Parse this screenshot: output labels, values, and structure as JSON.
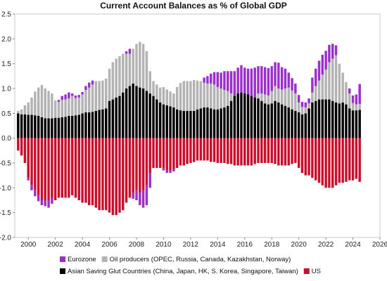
{
  "chart_data": {
    "type": "bar",
    "stacked": true,
    "title": "Current Account Balances as % of Global GDP",
    "xlabel": "",
    "ylabel": "",
    "ylim": [
      -2.0,
      2.5
    ],
    "xlim": [
      1999,
      2026
    ],
    "y_ticks": [
      "2.5",
      "2.0",
      "1.5",
      "1.0",
      "0.5",
      "0.0",
      "-0.5",
      "-1.0",
      "-1.5",
      "-2.0"
    ],
    "x_ticks": [
      "2000",
      "2002",
      "2004",
      "2006",
      "2008",
      "2010",
      "2012",
      "2014",
      "2016",
      "2018",
      "2020",
      "2022",
      "2024",
      "2026"
    ],
    "grid": false,
    "legend_position": "bottom",
    "x": [
      1999.25,
      1999.5,
      1999.75,
      2000.0,
      2000.25,
      2000.5,
      2000.75,
      2001.0,
      2001.25,
      2001.5,
      2001.75,
      2002.0,
      2002.25,
      2002.5,
      2002.75,
      2003.0,
      2003.25,
      2003.5,
      2003.75,
      2004.0,
      2004.25,
      2004.5,
      2004.75,
      2005.0,
      2005.25,
      2005.5,
      2005.75,
      2006.0,
      2006.25,
      2006.5,
      2006.75,
      2007.0,
      2007.25,
      2007.5,
      2007.75,
      2008.0,
      2008.25,
      2008.5,
      2008.75,
      2009.0,
      2009.25,
      2009.5,
      2009.75,
      2010.0,
      2010.25,
      2010.5,
      2010.75,
      2011.0,
      2011.25,
      2011.5,
      2011.75,
      2012.0,
      2012.25,
      2012.5,
      2012.75,
      2013.0,
      2013.25,
      2013.5,
      2013.75,
      2014.0,
      2014.25,
      2014.5,
      2014.75,
      2015.0,
      2015.25,
      2015.5,
      2015.75,
      2016.0,
      2016.25,
      2016.5,
      2016.75,
      2017.0,
      2017.25,
      2017.5,
      2017.75,
      2018.0,
      2018.25,
      2018.5,
      2018.75,
      2019.0,
      2019.25,
      2019.5,
      2019.75,
      2020.0,
      2020.25,
      2020.5,
      2020.75,
      2021.0,
      2021.25,
      2021.5,
      2021.75,
      2022.0,
      2022.25,
      2022.5,
      2022.75,
      2023.0,
      2023.25,
      2023.5,
      2023.75,
      2024.0,
      2024.25,
      2024.5
    ],
    "series": [
      {
        "name": "Asian Saving Glut Countries (China, Japan, HK, S. Korea, Singapore, Taiwan)",
        "color": "#000000",
        "values": [
          0.5,
          0.48,
          0.48,
          0.47,
          0.47,
          0.46,
          0.45,
          0.42,
          0.4,
          0.4,
          0.4,
          0.41,
          0.41,
          0.42,
          0.43,
          0.45,
          0.45,
          0.46,
          0.47,
          0.5,
          0.52,
          0.52,
          0.53,
          0.55,
          0.57,
          0.58,
          0.6,
          0.75,
          0.78,
          0.82,
          0.85,
          0.92,
          1.0,
          1.05,
          1.1,
          1.05,
          1.02,
          1.0,
          0.95,
          0.9,
          0.85,
          0.78,
          0.72,
          0.68,
          0.66,
          0.64,
          0.62,
          0.58,
          0.56,
          0.55,
          0.55,
          0.55,
          0.55,
          0.58,
          0.6,
          0.62,
          0.62,
          0.6,
          0.58,
          0.58,
          0.6,
          0.62,
          0.65,
          0.75,
          0.85,
          0.9,
          0.92,
          0.9,
          0.88,
          0.85,
          0.82,
          0.8,
          0.75,
          0.7,
          0.68,
          0.7,
          0.75,
          0.72,
          0.68,
          0.65,
          0.62,
          0.58,
          0.55,
          0.52,
          0.48,
          0.5,
          0.6,
          0.72,
          0.75,
          0.78,
          0.78,
          0.78,
          0.78,
          0.75,
          0.72,
          0.7,
          0.72,
          0.68,
          0.6,
          0.56,
          0.56,
          0.57
        ]
      },
      {
        "name": "Oil producers (OPEC, Russia, Canada, Kazakhstan, Norway)",
        "color": "#b3b3b3",
        "values": [
          0.05,
          0.1,
          0.18,
          0.25,
          0.35,
          0.48,
          0.57,
          0.65,
          0.6,
          0.55,
          0.5,
          0.35,
          0.32,
          0.35,
          0.35,
          0.35,
          0.4,
          0.35,
          0.35,
          0.38,
          0.45,
          0.5,
          0.55,
          0.6,
          0.58,
          0.58,
          0.6,
          0.65,
          0.75,
          0.78,
          0.8,
          0.78,
          0.7,
          0.65,
          0.7,
          0.85,
          0.92,
          0.9,
          0.8,
          0.45,
          0.3,
          0.3,
          0.3,
          0.35,
          0.32,
          0.3,
          0.28,
          0.45,
          0.55,
          0.6,
          0.6,
          0.6,
          0.62,
          0.58,
          0.55,
          0.5,
          0.48,
          0.5,
          0.5,
          0.45,
          0.4,
          0.35,
          0.3,
          0.15,
          0.0,
          0.0,
          0.0,
          0.0,
          0.0,
          0.0,
          0.0,
          0.1,
          0.15,
          0.18,
          0.18,
          0.25,
          0.3,
          0.28,
          0.3,
          0.35,
          0.4,
          0.38,
          0.35,
          0.2,
          0.15,
          0.12,
          0.1,
          0.2,
          0.3,
          0.38,
          0.5,
          0.6,
          0.75,
          0.85,
          0.95,
          0.8,
          0.6,
          0.45,
          0.3,
          0.15,
          0.12,
          0.12
        ]
      },
      {
        "name": "Eurozone",
        "color": "#9b30c8",
        "values": [
          0.0,
          0.0,
          0.0,
          0.0,
          0.0,
          0.0,
          0.0,
          0.0,
          0.0,
          0.0,
          0.0,
          0.0,
          0.04,
          0.08,
          0.1,
          0.12,
          0.05,
          0.05,
          0.05,
          0.05,
          0.08,
          0.1,
          0.08,
          0.0,
          0.0,
          0.0,
          0.0,
          0.0,
          0.0,
          0.0,
          0.0,
          0.0,
          0.05,
          0.1,
          0.0,
          0.0,
          0.0,
          0.0,
          0.0,
          0.0,
          0.0,
          0.0,
          0.0,
          0.0,
          0.0,
          0.0,
          0.0,
          0.0,
          0.0,
          0.0,
          0.0,
          0.0,
          0.0,
          0.0,
          0.0,
          0.1,
          0.15,
          0.2,
          0.25,
          0.3,
          0.32,
          0.38,
          0.4,
          0.45,
          0.5,
          0.52,
          0.55,
          0.52,
          0.52,
          0.55,
          0.6,
          0.55,
          0.55,
          0.55,
          0.55,
          0.5,
          0.48,
          0.52,
          0.45,
          0.4,
          0.3,
          0.25,
          0.2,
          0.15,
          0.1,
          0.1,
          0.1,
          0.3,
          0.35,
          0.4,
          0.4,
          0.38,
          0.35,
          0.3,
          0.2,
          0.0,
          0.0,
          0.0,
          0.1,
          0.15,
          0.2,
          0.4
        ]
      },
      {
        "name": "US",
        "color": "#c8102e",
        "values": [
          -0.25,
          -0.35,
          -0.5,
          -0.8,
          -0.95,
          -1.05,
          -1.15,
          -1.25,
          -1.25,
          -1.25,
          -1.2,
          -1.25,
          -1.2,
          -1.2,
          -1.2,
          -1.2,
          -1.15,
          -1.2,
          -1.25,
          -1.3,
          -1.3,
          -1.35,
          -1.35,
          -1.4,
          -1.45,
          -1.45,
          -1.45,
          -1.5,
          -1.55,
          -1.55,
          -1.5,
          -1.45,
          -1.3,
          -1.2,
          -1.1,
          -1.05,
          -1.1,
          -1.05,
          -0.95,
          -0.7,
          -0.6,
          -0.6,
          -0.6,
          -0.6,
          -0.65,
          -0.65,
          -0.62,
          -0.6,
          -0.55,
          -0.55,
          -0.52,
          -0.5,
          -0.48,
          -0.45,
          -0.45,
          -0.45,
          -0.45,
          -0.48,
          -0.48,
          -0.5,
          -0.5,
          -0.5,
          -0.52,
          -0.52,
          -0.55,
          -0.55,
          -0.55,
          -0.55,
          -0.55,
          -0.55,
          -0.52,
          -0.5,
          -0.5,
          -0.5,
          -0.5,
          -0.5,
          -0.52,
          -0.55,
          -0.55,
          -0.55,
          -0.55,
          -0.52,
          -0.5,
          -0.6,
          -0.7,
          -0.75,
          -0.75,
          -0.8,
          -0.85,
          -0.9,
          -0.95,
          -1.0,
          -1.0,
          -1.0,
          -0.95,
          -0.9,
          -0.9,
          -0.88,
          -0.85,
          -0.85,
          -0.82,
          -0.88
        ]
      }
    ],
    "negative_overlay": {
      "name": "Eurozone",
      "color": "#9b30c8",
      "note_values": [
        0.0,
        0.0,
        0.0,
        0.05,
        0.1,
        0.12,
        0.12,
        0.1,
        0.12,
        0.15,
        0.12,
        0.0,
        0.0,
        0.0,
        0.0,
        0.0,
        0.0,
        0.0,
        0.0,
        0.0,
        0.0,
        0.0,
        0.0,
        0.0,
        0.0,
        0.0,
        0.0,
        0.0,
        0.0,
        0.0,
        0.0,
        0.0,
        0.0,
        0.0,
        0.12,
        0.2,
        0.25,
        0.35,
        0.4,
        0.3,
        0.0,
        0.0,
        0.0,
        0.05,
        0.05,
        0.05,
        0.05,
        0.0,
        0.0,
        0.0,
        0.0,
        0.0,
        0.0,
        0.0,
        0.0,
        0.0,
        0.0,
        0.0,
        0.0,
        0.0,
        0.0,
        0.0,
        0.0,
        0.0,
        0.0,
        0.0,
        0.0,
        0.0,
        0.0,
        0.0,
        0.0,
        0.0,
        0.0,
        0.0,
        0.0,
        0.0,
        0.0,
        0.0,
        0.0,
        0.0,
        0.0,
        0.0,
        0.0,
        0.0,
        0.0,
        0.0,
        0.0,
        0.0,
        0.0,
        0.0,
        0.0,
        0.0,
        0.0,
        0.0,
        0.0,
        0.0,
        0.0,
        0.0,
        0.0,
        0.0,
        0.0,
        0.0
      ]
    },
    "legend": [
      {
        "label": "Eurozone",
        "color": "#9b30c8"
      },
      {
        "label": "Oil producers (OPEC, Russia, Canada, Kazakhstan, Norway)",
        "color": "#b3b3b3"
      },
      {
        "label": "Asian Saving Glut Countries (China, Japan, HK, S. Korea, Singapore, Taiwan)",
        "color": "#000000"
      },
      {
        "label": "US",
        "color": "#c8102e"
      }
    ]
  }
}
